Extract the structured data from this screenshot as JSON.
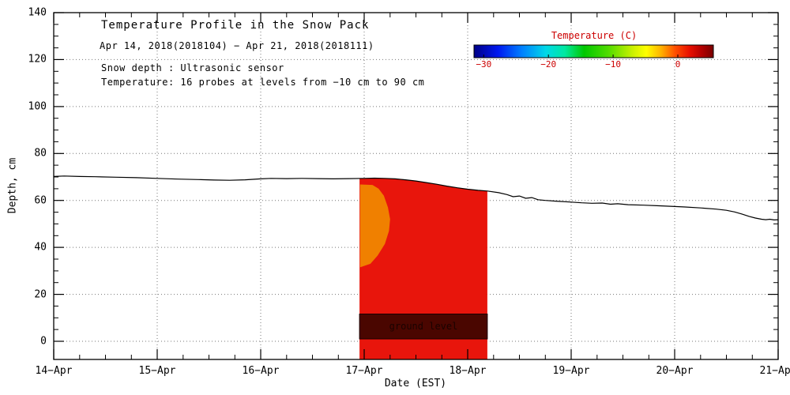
{
  "chart_data": {
    "type": "heatmap+line",
    "title": "Temperature Profile in the Snow Pack",
    "subtitle": "Apr 14, 2018(2018104) − Apr 21, 2018(2018111)",
    "note1": "Snow depth : Ultrasonic sensor",
    "note2": "Temperature: 16 probes at levels from −10 cm to 90 cm",
    "xlabel": "Date (EST)",
    "ylabel": "Depth, cm",
    "xlim_days": [
      14,
      21
    ],
    "ylim": [
      -7.7,
      140
    ],
    "grid": true,
    "x_ticks": [
      {
        "day": 14,
        "label": "14−Apr"
      },
      {
        "day": 15,
        "label": "15−Apr"
      },
      {
        "day": 16,
        "label": "16−Apr"
      },
      {
        "day": 17,
        "label": "17−Apr"
      },
      {
        "day": 18,
        "label": "18−Apr"
      },
      {
        "day": 19,
        "label": "19−Apr"
      },
      {
        "day": 20,
        "label": "20−Apr"
      },
      {
        "day": 21,
        "label": "21−Apr"
      }
    ],
    "y_ticks": [
      {
        "cm": 0,
        "label": "0"
      },
      {
        "cm": 20,
        "label": "20"
      },
      {
        "cm": 40,
        "label": "40"
      },
      {
        "cm": 60,
        "label": "60"
      },
      {
        "cm": 80,
        "label": "80"
      },
      {
        "cm": 100,
        "label": "100"
      },
      {
        "cm": 120,
        "label": "120"
      },
      {
        "cm": 140,
        "label": "140"
      }
    ],
    "line_color": "#000000",
    "snow_depth_line_cm": {
      "x_day": [
        14.0,
        14.1,
        14.25,
        14.4,
        14.6,
        14.8,
        15.0,
        15.2,
        15.4,
        15.55,
        15.7,
        15.85,
        16.0,
        16.1,
        16.25,
        16.4,
        16.55,
        16.7,
        16.85,
        17.0,
        17.1,
        17.2,
        17.3,
        17.4,
        17.5,
        17.6,
        17.7,
        17.8,
        17.9,
        18.0,
        18.1,
        18.19,
        18.3,
        18.38,
        18.44,
        18.5,
        18.56,
        18.62,
        18.68,
        18.75,
        18.85,
        19.0,
        19.1,
        19.2,
        19.3,
        19.38,
        19.45,
        19.55,
        19.7,
        19.85,
        20.0,
        20.1,
        20.25,
        20.4,
        20.5,
        20.58,
        20.65,
        20.72,
        20.78,
        20.84,
        20.88,
        20.92,
        20.96,
        21.0
      ],
      "y_cm": [
        70.2,
        70.4,
        70.2,
        70.1,
        69.9,
        69.7,
        69.4,
        69.1,
        68.9,
        68.7,
        68.6,
        68.8,
        69.2,
        69.4,
        69.3,
        69.4,
        69.3,
        69.2,
        69.3,
        69.4,
        69.5,
        69.4,
        69.2,
        68.8,
        68.3,
        67.6,
        66.9,
        66.1,
        65.4,
        64.8,
        64.3,
        64.0,
        63.3,
        62.5,
        61.6,
        61.9,
        60.9,
        61.2,
        60.3,
        60.0,
        59.7,
        59.3,
        59.0,
        58.8,
        58.9,
        58.4,
        58.6,
        58.2,
        58.0,
        57.7,
        57.4,
        57.2,
        56.8,
        56.3,
        55.8,
        55.1,
        54.2,
        53.2,
        52.5,
        52.0,
        51.8,
        52.0,
        51.7,
        51.8
      ]
    },
    "warm_region": {
      "x0_day": 16.955,
      "x1_day": 18.19,
      "bottom_cm": -7.7,
      "color": "#e8150c",
      "top": "follows snow depth line"
    },
    "orange_patch": {
      "color": "#f08000",
      "polygon_day_cm": [
        [
          16.96,
          66.8
        ],
        [
          17.08,
          66.6
        ],
        [
          17.14,
          65.0
        ],
        [
          17.19,
          62.0
        ],
        [
          17.23,
          57.0
        ],
        [
          17.25,
          52.0
        ],
        [
          17.24,
          47.0
        ],
        [
          17.2,
          41.5
        ],
        [
          17.13,
          36.5
        ],
        [
          17.06,
          33.0
        ],
        [
          16.96,
          31.5
        ]
      ]
    },
    "ground_band": {
      "x0_day": 16.955,
      "x1_day": 18.19,
      "y0_cm": 1.0,
      "y1_cm": 11.6,
      "color": "#4a0600",
      "label": "ground level"
    },
    "colorbar": {
      "label": "Temperature (C)",
      "label_color": "#cc0000",
      "min_c": -31.5,
      "max_c": 5.5,
      "ticks": [
        {
          "c": -30,
          "label": "−30"
        },
        {
          "c": -20,
          "label": "−20"
        },
        {
          "c": -10,
          "label": "−10"
        },
        {
          "c": 0,
          "label": "0"
        }
      ],
      "stops": [
        [
          0.0,
          "#000087"
        ],
        [
          0.1,
          "#0018f0"
        ],
        [
          0.2,
          "#0080ff"
        ],
        [
          0.3,
          "#00d8e8"
        ],
        [
          0.38,
          "#00e8a0"
        ],
        [
          0.46,
          "#00c800"
        ],
        [
          0.56,
          "#50dc00"
        ],
        [
          0.66,
          "#c8f000"
        ],
        [
          0.72,
          "#ffff00"
        ],
        [
          0.78,
          "#ffb400"
        ],
        [
          0.84,
          "#ff5000"
        ],
        [
          0.9,
          "#e81000"
        ],
        [
          0.95,
          "#b40000"
        ],
        [
          1.0,
          "#780000"
        ]
      ]
    }
  }
}
